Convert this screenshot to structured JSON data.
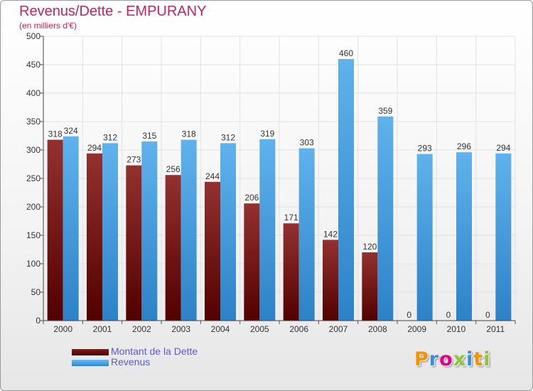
{
  "title": "Revenus/Dette - EMPURANY",
  "subtitle": "(en milliers d'€)",
  "brand": {
    "text": "Proxiti",
    "colors": [
      "#f29400",
      "#3a8fd9",
      "#e3007a",
      "#8cc63f",
      "#3a8fd9",
      "#f29400",
      "#8cc63f"
    ]
  },
  "colors": {
    "debt": "#6b0b0b",
    "revenue": "#4ea3e2",
    "title": "#c4245a",
    "legend_text": "#5a5ad6"
  },
  "chart_data": {
    "type": "bar",
    "categories": [
      "2000",
      "2001",
      "2002",
      "2003",
      "2004",
      "2005",
      "2006",
      "2007",
      "2008",
      "2009",
      "2010",
      "2011"
    ],
    "series": [
      {
        "name": "Montant de la Dette",
        "values": [
          318,
          294,
          273,
          256,
          244,
          206,
          171,
          142,
          120,
          0,
          0,
          0
        ]
      },
      {
        "name": "Revenus",
        "values": [
          324,
          312,
          315,
          318,
          312,
          319,
          303,
          460,
          359,
          293,
          296,
          294
        ]
      }
    ],
    "ylim": [
      0,
      500
    ],
    "yticks": [
      0,
      50,
      100,
      150,
      200,
      250,
      300,
      350,
      400,
      450,
      500
    ],
    "grid": true,
    "legend": "bottom-left"
  }
}
